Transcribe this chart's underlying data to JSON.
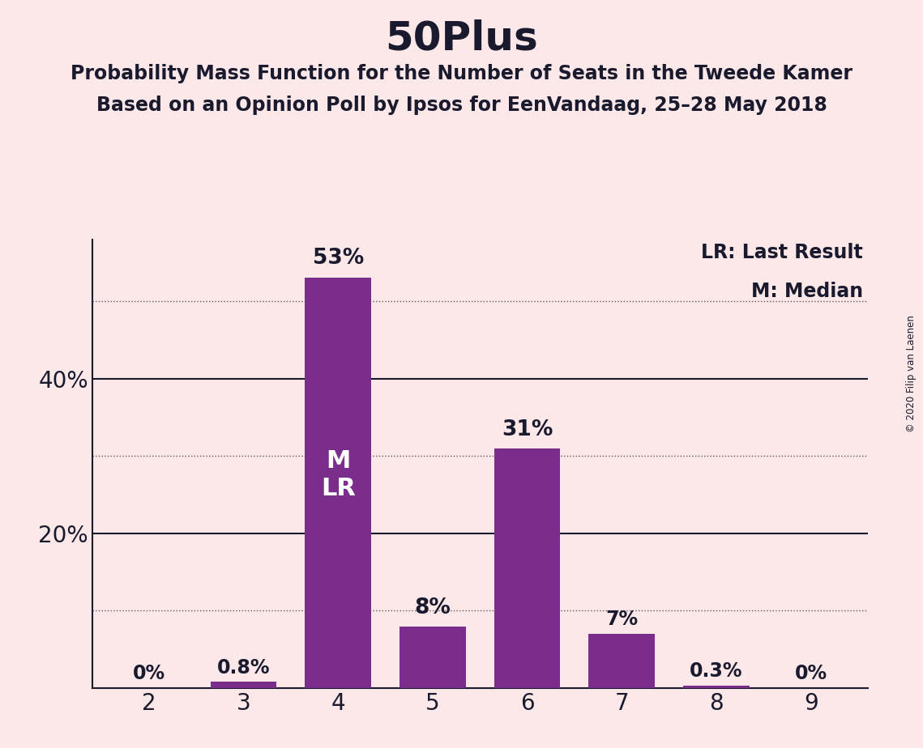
{
  "title": "50Plus",
  "subtitle1": "Probability Mass Function for the Number of Seats in the Tweede Kamer",
  "subtitle2": "Based on an Opinion Poll by Ipsos for EenVandaag, 25–28 May 2018",
  "categories": [
    2,
    3,
    4,
    5,
    6,
    7,
    8,
    9
  ],
  "values": [
    0.0,
    0.8,
    53.0,
    8.0,
    31.0,
    7.0,
    0.3,
    0.0
  ],
  "bar_color": "#7b2d8b",
  "background_color": "#fce8e8",
  "text_color": "#1a1a2e",
  "bar_labels": [
    "0%",
    "0.8%",
    "53%",
    "8%",
    "31%",
    "7%",
    "0.3%",
    "0%"
  ],
  "ylim": [
    0,
    58
  ],
  "legend_lr": "LR: Last Result",
  "legend_m": "M: Median",
  "median_bar": 4,
  "copyright": "© 2020 Filip van Laenen",
  "dotted_lines": [
    10,
    30,
    50
  ],
  "solid_lines": [
    20,
    40
  ],
  "ytick_positions": [
    20,
    40
  ],
  "ytick_labels": [
    "20%",
    "40%"
  ]
}
